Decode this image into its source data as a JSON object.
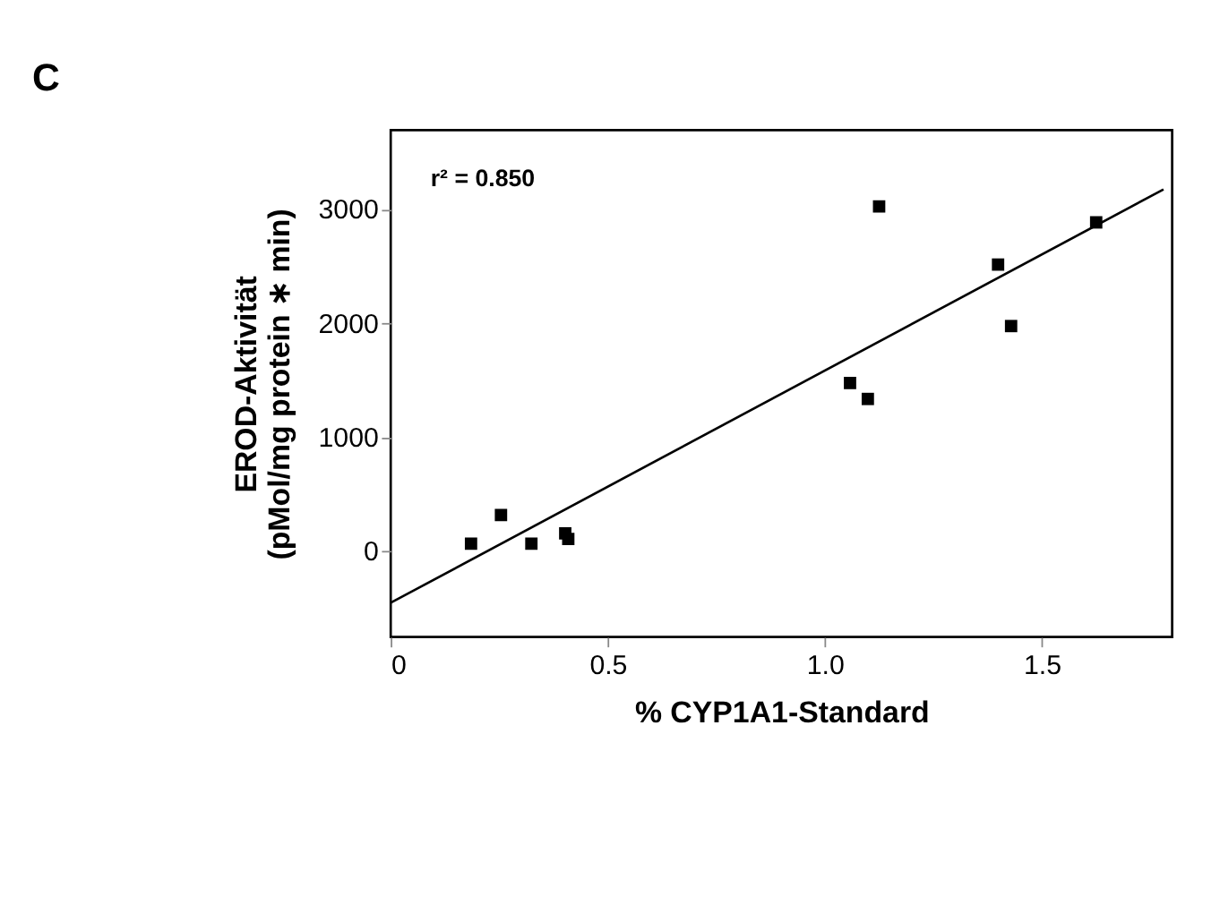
{
  "chart_data": {
    "type": "scatter",
    "title": "C",
    "xlabel": "% CYP1A1-Standard",
    "ylabel": "EROD-Aktivität\n(pMol/mg protein ∗ min)",
    "x": [
      0.185,
      0.254,
      0.324,
      0.402,
      0.409,
      1.058,
      1.099,
      1.125,
      1.399,
      1.429,
      1.625
    ],
    "series": [
      {
        "color": "#000000",
        "marker": "square",
        "values": [
          70,
          320,
          70,
          160,
          110,
          1480,
          1340,
          3030,
          2520,
          1980,
          2890
        ]
      },
      {
        "type": "line",
        "color": "#000000",
        "line_style": "solid",
        "x": [
          0,
          1.78
        ],
        "values": [
          -450,
          3180
        ]
      }
    ],
    "annotations": [
      "r² = 0.850"
    ],
    "xlim": [
      0,
      1.8
    ],
    "xticks": [
      0,
      0.5,
      {
        "value": 1,
        "label": "1.0"
      },
      1.5
    ],
    "ylim": [
      -750,
      3700
    ],
    "yticks": [
      0,
      1000,
      2000,
      3000
    ],
    "grid": false
  }
}
